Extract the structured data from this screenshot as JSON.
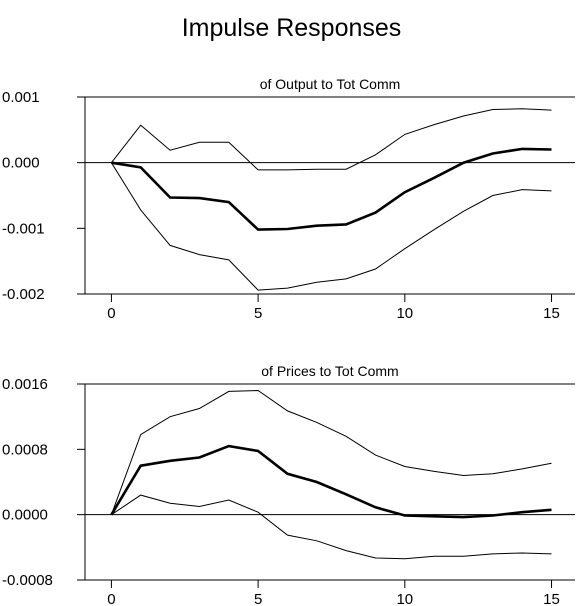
{
  "figure_title": "Impulse Responses",
  "chart_data": [
    {
      "type": "line",
      "title": "of Output to Tot Comm",
      "xlabel": "",
      "ylabel": "",
      "x": [
        0,
        1,
        2,
        3,
        4,
        5,
        6,
        7,
        8,
        9,
        10,
        11,
        12,
        13,
        14,
        15
      ],
      "xlim": [
        -0.9,
        15.8
      ],
      "xticks": [
        0,
        5,
        10,
        15
      ],
      "ylim": [
        -0.002,
        0.001
      ],
      "yticks": [
        -0.002,
        -0.001,
        0.0,
        0.001
      ],
      "ytick_labels": [
        "-0.002",
        "-0.001",
        "0.000",
        "0.001"
      ],
      "zero_line": true,
      "grid": false,
      "series": [
        {
          "role": "upper",
          "stroke_width": 1,
          "values": [
            0.0,
            0.00057,
            0.00019,
            0.00031,
            0.00031,
            -0.00011,
            -0.00011,
            -0.0001,
            -0.0001,
            0.00012,
            0.00043,
            0.00058,
            0.00071,
            0.00081,
            0.00082,
            0.0008
          ]
        },
        {
          "role": "estimate",
          "stroke_width": 2.6,
          "values": [
            0.0,
            -7e-05,
            -0.00053,
            -0.00054,
            -0.0006,
            -0.00102,
            -0.00101,
            -0.00096,
            -0.00094,
            -0.00076,
            -0.00045,
            -0.00023,
            0.0,
            0.00014,
            0.00021,
            0.0002
          ]
        },
        {
          "role": "lower",
          "stroke_width": 1,
          "values": [
            0.0,
            -0.00072,
            -0.00126,
            -0.0014,
            -0.00148,
            -0.00194,
            -0.00191,
            -0.00182,
            -0.00177,
            -0.00162,
            -0.00131,
            -0.00102,
            -0.00074,
            -0.0005,
            -0.00041,
            -0.00043
          ]
        }
      ]
    },
    {
      "type": "line",
      "title": "of Prices to Tot Comm",
      "xlabel": "",
      "ylabel": "",
      "x": [
        0,
        1,
        2,
        3,
        4,
        5,
        6,
        7,
        8,
        9,
        10,
        11,
        12,
        13,
        14,
        15
      ],
      "xlim": [
        -0.9,
        15.8
      ],
      "xticks": [
        0,
        5,
        10,
        15
      ],
      "ylim": [
        -0.0008,
        0.0016
      ],
      "yticks": [
        -0.0008,
        0.0,
        0.0008,
        0.0016
      ],
      "ytick_labels": [
        "-0.0008",
        "0.0000",
        "0.0008",
        "0.0016"
      ],
      "zero_line": true,
      "grid": false,
      "series": [
        {
          "role": "upper",
          "stroke_width": 1,
          "values": [
            0.0,
            0.00098,
            0.0012,
            0.0013,
            0.00151,
            0.00152,
            0.00127,
            0.00113,
            0.00096,
            0.00073,
            0.00059,
            0.00053,
            0.00048,
            0.0005,
            0.00056,
            0.00063
          ]
        },
        {
          "role": "estimate",
          "stroke_width": 2.6,
          "values": [
            0.0,
            0.0006,
            0.00066,
            0.0007,
            0.00084,
            0.00078,
            0.0005,
            0.0004,
            0.00025,
            9e-05,
            -1e-05,
            -2e-05,
            -3e-05,
            -1e-05,
            3e-05,
            6e-05
          ]
        },
        {
          "role": "lower",
          "stroke_width": 1,
          "values": [
            0.0,
            0.00024,
            0.00014,
            0.0001,
            0.00018,
            3e-05,
            -0.00025,
            -0.00032,
            -0.00044,
            -0.00053,
            -0.00054,
            -0.00051,
            -0.00051,
            -0.00048,
            -0.00047,
            -0.00048
          ]
        }
      ]
    }
  ]
}
